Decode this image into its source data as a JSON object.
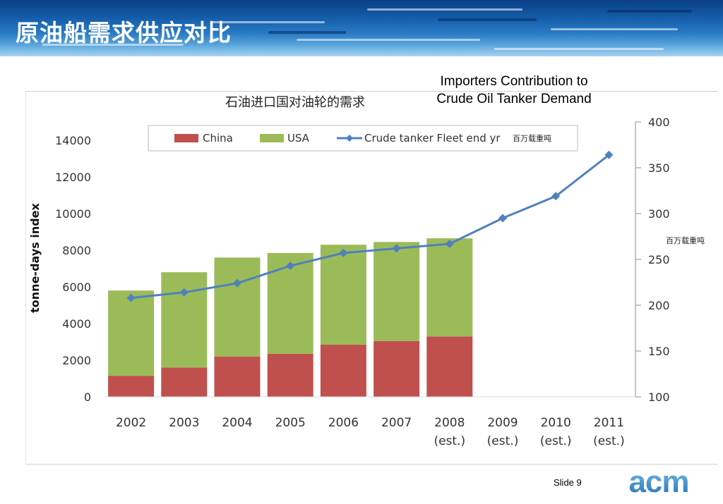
{
  "slide": {
    "title": "原油船需求供应对比",
    "subtitle_line1": "Importers Contribution to",
    "subtitle_line2": "Crude Oil Tanker Demand",
    "footer": "Slide 9",
    "logo_text": "acm"
  },
  "colors": {
    "china": "#c0504d",
    "usa": "#9bbb59",
    "line": "#4f81bd",
    "banner": "#1660ad"
  },
  "chart_data": {
    "type": "bar",
    "title": "石油进口国对油轮的需求",
    "ylabel": "tonne-days index",
    "y2label": "百万载重吨",
    "legend_unit": "百万载重吨",
    "legend_position": "top",
    "grid": false,
    "ylim": [
      0,
      14000
    ],
    "yticks": [
      0,
      2000,
      4000,
      6000,
      8000,
      10000,
      12000,
      14000
    ],
    "y2lim": [
      100,
      400
    ],
    "y2ticks": [
      100,
      150,
      200,
      250,
      300,
      350,
      400
    ],
    "categories": [
      "2002",
      "2003",
      "2004",
      "2005",
      "2006",
      "2007",
      "2008",
      "2009",
      "2010",
      "2011"
    ],
    "category_notes": [
      "",
      "",
      "",
      "",
      "",
      "",
      "(est.)",
      "(est.)",
      "(est.)",
      "(est.)"
    ],
    "stacked": true,
    "series": [
      {
        "name": "China",
        "axis": "left",
        "kind": "bar",
        "values": [
          1150,
          1600,
          2200,
          2350,
          2850,
          3050,
          3300,
          null,
          null,
          null
        ]
      },
      {
        "name": "USA",
        "axis": "left",
        "kind": "bar",
        "values": [
          4650,
          5200,
          5400,
          5500,
          5450,
          5400,
          5350,
          null,
          null,
          null
        ]
      },
      {
        "name": "Crude tanker Fleet end yr",
        "axis": "right",
        "kind": "line",
        "values": [
          208,
          214,
          224,
          243,
          257,
          262,
          267,
          295,
          319,
          364
        ]
      }
    ]
  }
}
